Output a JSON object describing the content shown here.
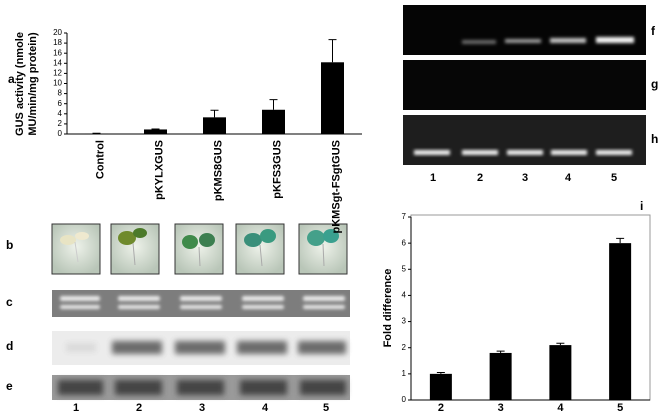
{
  "chart_data": [
    {
      "type": "bar",
      "label": "a",
      "ylabel": [
        "GUS activity (nmole",
        "MU/min/mg protein)"
      ],
      "categories": [
        "Control",
        "pKYLXGUS",
        "pKMS8GUS",
        "pKFS3GUS",
        "pKMSgt-FSgtGUS"
      ],
      "values": [
        0.1,
        0.9,
        3.3,
        4.8,
        14.2
      ],
      "errors": [
        0.05,
        0.1,
        1.4,
        2.0,
        4.5
      ],
      "color": "#000000",
      "ylim": [
        0,
        20
      ],
      "yticks": [
        0,
        2,
        4,
        6,
        8,
        10,
        12,
        14,
        16,
        18,
        20
      ]
    },
    {
      "type": "bar",
      "label": "i",
      "ylabel": [
        "Fold difference"
      ],
      "categories": [
        "2",
        "3",
        "4",
        "5"
      ],
      "values": [
        1.0,
        1.8,
        2.1,
        6.0
      ],
      "errors": [
        0.05,
        0.07,
        0.07,
        0.18
      ],
      "color": "#000000",
      "ylim": [
        0,
        7
      ],
      "yticks": [
        0,
        1,
        2,
        3,
        4,
        5,
        6,
        7
      ]
    }
  ],
  "panels": {
    "b": "b",
    "c": "c",
    "d": "d",
    "e": "e",
    "f": "f",
    "g": "g",
    "h": "h"
  },
  "lanes_left": [
    "1",
    "2",
    "3",
    "4",
    "5"
  ],
  "lanes_right": [
    "1",
    "2",
    "3",
    "4",
    "5"
  ]
}
